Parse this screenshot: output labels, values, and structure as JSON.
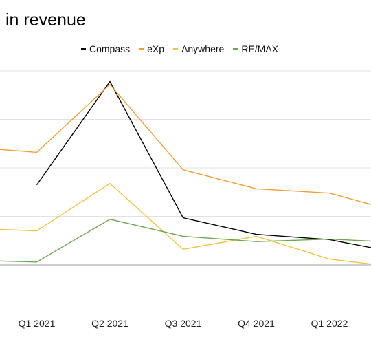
{
  "chart_data": {
    "type": "line",
    "title": "in revenue",
    "categories": [
      "",
      "Q1 2021",
      "Q2 2021",
      "Q3 2021",
      "Q4 2021",
      "Q1 2022",
      ""
    ],
    "series": [
      {
        "name": "Compass",
        "color": "#000000",
        "values": [
          null,
          16.5,
          37.8,
          9.7,
          6.3,
          5.2,
          2.3
        ]
      },
      {
        "name": "eXp",
        "color": "#f39c32",
        "values": [
          24.4,
          23.2,
          37.2,
          19.6,
          15.7,
          14.8,
          10.7
        ]
      },
      {
        "name": "Anywhere",
        "color": "#f3c23c",
        "values": [
          7.6,
          7.0,
          16.8,
          3.2,
          5.9,
          1.2,
          -0.6
        ]
      },
      {
        "name": "RE/MAX",
        "color": "#6aa84f",
        "values": [
          1.0,
          0.6,
          9.4,
          5.9,
          4.8,
          5.3,
          4.6
        ]
      }
    ],
    "ylim": [
      -10,
      40
    ],
    "gridlines": [
      0,
      10,
      20,
      30,
      40
    ],
    "grid": true,
    "legend": "top"
  }
}
